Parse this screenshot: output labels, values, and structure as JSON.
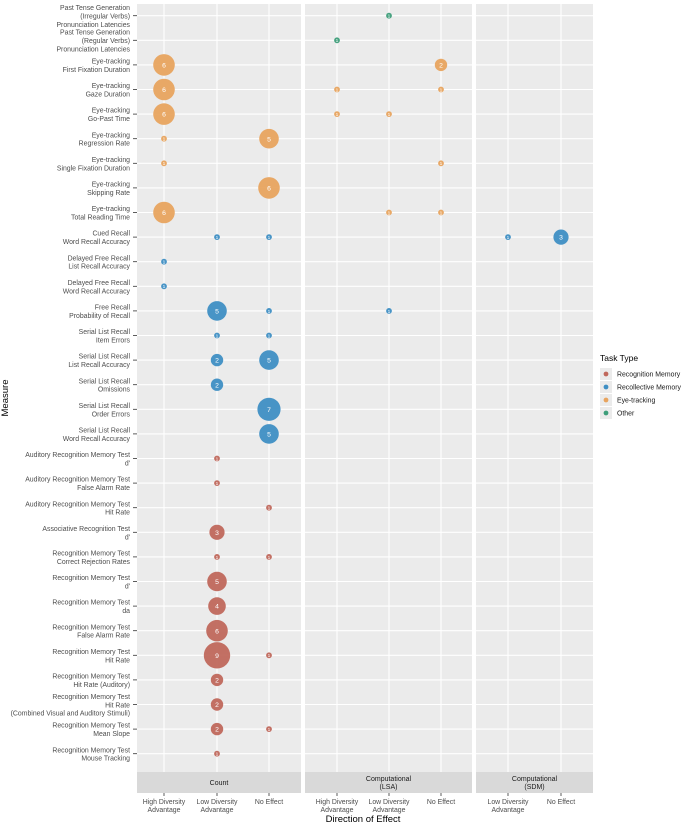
{
  "chart_data": {
    "type": "scatter",
    "subtype": "bubble-faceted",
    "xlabel": "Direction of Effect",
    "ylabel": "Measure",
    "legend": {
      "title": "Task Type",
      "position": "right",
      "items": [
        {
          "key": "recognition",
          "label": "Recognition Memory",
          "color": "#c0685c"
        },
        {
          "key": "recollective",
          "label": "Recollective Memory",
          "color": "#3f8fc4"
        },
        {
          "key": "eyetracking",
          "label": "Eye-tracking",
          "color": "#e8a45f"
        },
        {
          "key": "other",
          "label": "Other",
          "color": "#3e9e7a"
        }
      ]
    },
    "measures": [
      [
        "Past Tense Generation",
        "(Irregular Verbs)",
        "Pronunciation Latencies"
      ],
      [
        "Past Tense Generation",
        "(Regular Verbs)",
        "Pronunciation Latencies"
      ],
      [
        "Eye-tracking",
        "First Fixation Duration"
      ],
      [
        "Eye-tracking",
        "Gaze Duration"
      ],
      [
        "Eye-tracking",
        "Go-Past Time"
      ],
      [
        "Eye-tracking",
        "Regression Rate"
      ],
      [
        "Eye-tracking",
        "Single Fixation Duration"
      ],
      [
        "Eye-tracking",
        "Skipping Rate"
      ],
      [
        "Eye-tracking",
        "Total Reading Time"
      ],
      [
        "Cued Recall",
        "Word Recall Accuracy"
      ],
      [
        "Delayed Free Recall",
        "List Recall Accuracy"
      ],
      [
        "Delayed Free Recall",
        "Word Recall Accuracy"
      ],
      [
        "Free Recall",
        "Probability of Recall"
      ],
      [
        "Serial List Recall",
        "Item Errors"
      ],
      [
        "Serial List Recall",
        "List Recall Accuracy"
      ],
      [
        "Serial List Recall",
        "Omissions"
      ],
      [
        "Serial List Recall",
        "Order Errors"
      ],
      [
        "Serial List Recall",
        "Word Recall Accuracy"
      ],
      [
        "Auditory Recognition Memory Test",
        "d'"
      ],
      [
        "Auditory Recognition Memory Test",
        "False Alarm Rate"
      ],
      [
        "Auditory Recognition Memory Test",
        "Hit Rate"
      ],
      [
        "Associative Recognition Test",
        "d'"
      ],
      [
        "Recognition Memory Test",
        "Correct Rejection Rates"
      ],
      [
        "Recognition Memory Test",
        "d'"
      ],
      [
        "Recognition Memory Test",
        "da"
      ],
      [
        "Recognition Memory Test",
        "False Alarm Rate"
      ],
      [
        "Recognition Memory Test",
        "Hit Rate"
      ],
      [
        "Recognition Memory Test",
        "Hit Rate (Auditory)"
      ],
      [
        "Recognition Memory Test",
        "Hit Rate",
        "(Combined Visual and Auditory Stimuli)"
      ],
      [
        "Recognition Memory Test",
        "Mean Slope"
      ],
      [
        "Recognition Memory Test",
        "Mouse Tracking"
      ]
    ],
    "facets": [
      {
        "label": [
          "Count"
        ],
        "categories": [
          [
            "High Diversity",
            "Advantage"
          ],
          [
            "Low Diversity",
            "Advantage"
          ],
          [
            "No Effect"
          ]
        ]
      },
      {
        "label": [
          "Computational",
          "(LSA)"
        ],
        "categories": [
          [
            "High Diversity",
            "Advantage"
          ],
          [
            "Low Diversity",
            "Advantage"
          ],
          [
            "No Effect"
          ]
        ]
      },
      {
        "label": [
          "Computational",
          "(SDM)"
        ],
        "categories": [
          [
            "Low Diversity",
            "Advantage"
          ],
          [
            "No Effect"
          ]
        ]
      }
    ],
    "points": [
      {
        "facet": 1,
        "x": 1,
        "m": 0,
        "type": "other",
        "n": 1
      },
      {
        "facet": 1,
        "x": 0,
        "m": 1,
        "type": "other",
        "n": 1
      },
      {
        "facet": 0,
        "x": 0,
        "m": 2,
        "type": "eyetracking",
        "n": 6
      },
      {
        "facet": 1,
        "x": 2,
        "m": 2,
        "type": "eyetracking",
        "n": 2
      },
      {
        "facet": 0,
        "x": 0,
        "m": 3,
        "type": "eyetracking",
        "n": 6
      },
      {
        "facet": 1,
        "x": 0,
        "m": 3,
        "type": "eyetracking",
        "n": 1
      },
      {
        "facet": 1,
        "x": 2,
        "m": 3,
        "type": "eyetracking",
        "n": 1
      },
      {
        "facet": 0,
        "x": 0,
        "m": 4,
        "type": "eyetracking",
        "n": 6
      },
      {
        "facet": 1,
        "x": 0,
        "m": 4,
        "type": "eyetracking",
        "n": 1
      },
      {
        "facet": 1,
        "x": 1,
        "m": 4,
        "type": "eyetracking",
        "n": 1
      },
      {
        "facet": 0,
        "x": 0,
        "m": 5,
        "type": "eyetracking",
        "n": 1
      },
      {
        "facet": 0,
        "x": 2,
        "m": 5,
        "type": "eyetracking",
        "n": 5
      },
      {
        "facet": 0,
        "x": 0,
        "m": 6,
        "type": "eyetracking",
        "n": 1
      },
      {
        "facet": 1,
        "x": 2,
        "m": 6,
        "type": "eyetracking",
        "n": 1
      },
      {
        "facet": 0,
        "x": 2,
        "m": 7,
        "type": "eyetracking",
        "n": 6
      },
      {
        "facet": 0,
        "x": 0,
        "m": 8,
        "type": "eyetracking",
        "n": 6
      },
      {
        "facet": 1,
        "x": 1,
        "m": 8,
        "type": "eyetracking",
        "n": 1
      },
      {
        "facet": 1,
        "x": 2,
        "m": 8,
        "type": "eyetracking",
        "n": 1
      },
      {
        "facet": 0,
        "x": 1,
        "m": 9,
        "type": "recollective",
        "n": 1
      },
      {
        "facet": 0,
        "x": 2,
        "m": 9,
        "type": "recollective",
        "n": 1
      },
      {
        "facet": 2,
        "x": 0,
        "m": 9,
        "type": "recollective",
        "n": 1
      },
      {
        "facet": 2,
        "x": 1,
        "m": 9,
        "type": "recollective",
        "n": 3
      },
      {
        "facet": 0,
        "x": 0,
        "m": 10,
        "type": "recollective",
        "n": 1
      },
      {
        "facet": 0,
        "x": 0,
        "m": 11,
        "type": "recollective",
        "n": 1
      },
      {
        "facet": 0,
        "x": 1,
        "m": 12,
        "type": "recollective",
        "n": 5
      },
      {
        "facet": 0,
        "x": 2,
        "m": 12,
        "type": "recollective",
        "n": 1
      },
      {
        "facet": 1,
        "x": 1,
        "m": 12,
        "type": "recollective",
        "n": 1
      },
      {
        "facet": 0,
        "x": 1,
        "m": 13,
        "type": "recollective",
        "n": 1
      },
      {
        "facet": 0,
        "x": 2,
        "m": 13,
        "type": "recollective",
        "n": 1
      },
      {
        "facet": 0,
        "x": 1,
        "m": 14,
        "type": "recollective",
        "n": 2
      },
      {
        "facet": 0,
        "x": 2,
        "m": 14,
        "type": "recollective",
        "n": 5
      },
      {
        "facet": 0,
        "x": 1,
        "m": 15,
        "type": "recollective",
        "n": 2
      },
      {
        "facet": 0,
        "x": 2,
        "m": 16,
        "type": "recollective",
        "n": 7
      },
      {
        "facet": 0,
        "x": 2,
        "m": 17,
        "type": "recollective",
        "n": 5
      },
      {
        "facet": 0,
        "x": 1,
        "m": 18,
        "type": "recognition",
        "n": 1
      },
      {
        "facet": 0,
        "x": 1,
        "m": 19,
        "type": "recognition",
        "n": 1
      },
      {
        "facet": 0,
        "x": 2,
        "m": 20,
        "type": "recognition",
        "n": 1
      },
      {
        "facet": 0,
        "x": 1,
        "m": 21,
        "type": "recognition",
        "n": 3
      },
      {
        "facet": 0,
        "x": 1,
        "m": 22,
        "type": "recognition",
        "n": 1
      },
      {
        "facet": 0,
        "x": 2,
        "m": 22,
        "type": "recognition",
        "n": 1
      },
      {
        "facet": 0,
        "x": 1,
        "m": 23,
        "type": "recognition",
        "n": 5
      },
      {
        "facet": 0,
        "x": 1,
        "m": 24,
        "type": "recognition",
        "n": 4
      },
      {
        "facet": 0,
        "x": 1,
        "m": 25,
        "type": "recognition",
        "n": 6
      },
      {
        "facet": 0,
        "x": 1,
        "m": 26,
        "type": "recognition",
        "n": 9
      },
      {
        "facet": 0,
        "x": 2,
        "m": 26,
        "type": "recognition",
        "n": 1
      },
      {
        "facet": 0,
        "x": 1,
        "m": 27,
        "type": "recognition",
        "n": 2
      },
      {
        "facet": 0,
        "x": 1,
        "m": 28,
        "type": "recognition",
        "n": 2
      },
      {
        "facet": 0,
        "x": 1,
        "m": 29,
        "type": "recognition",
        "n": 2
      },
      {
        "facet": 0,
        "x": 2,
        "m": 29,
        "type": "recognition",
        "n": 1
      },
      {
        "facet": 0,
        "x": 1,
        "m": 30,
        "type": "recognition",
        "n": 1
      }
    ]
  }
}
